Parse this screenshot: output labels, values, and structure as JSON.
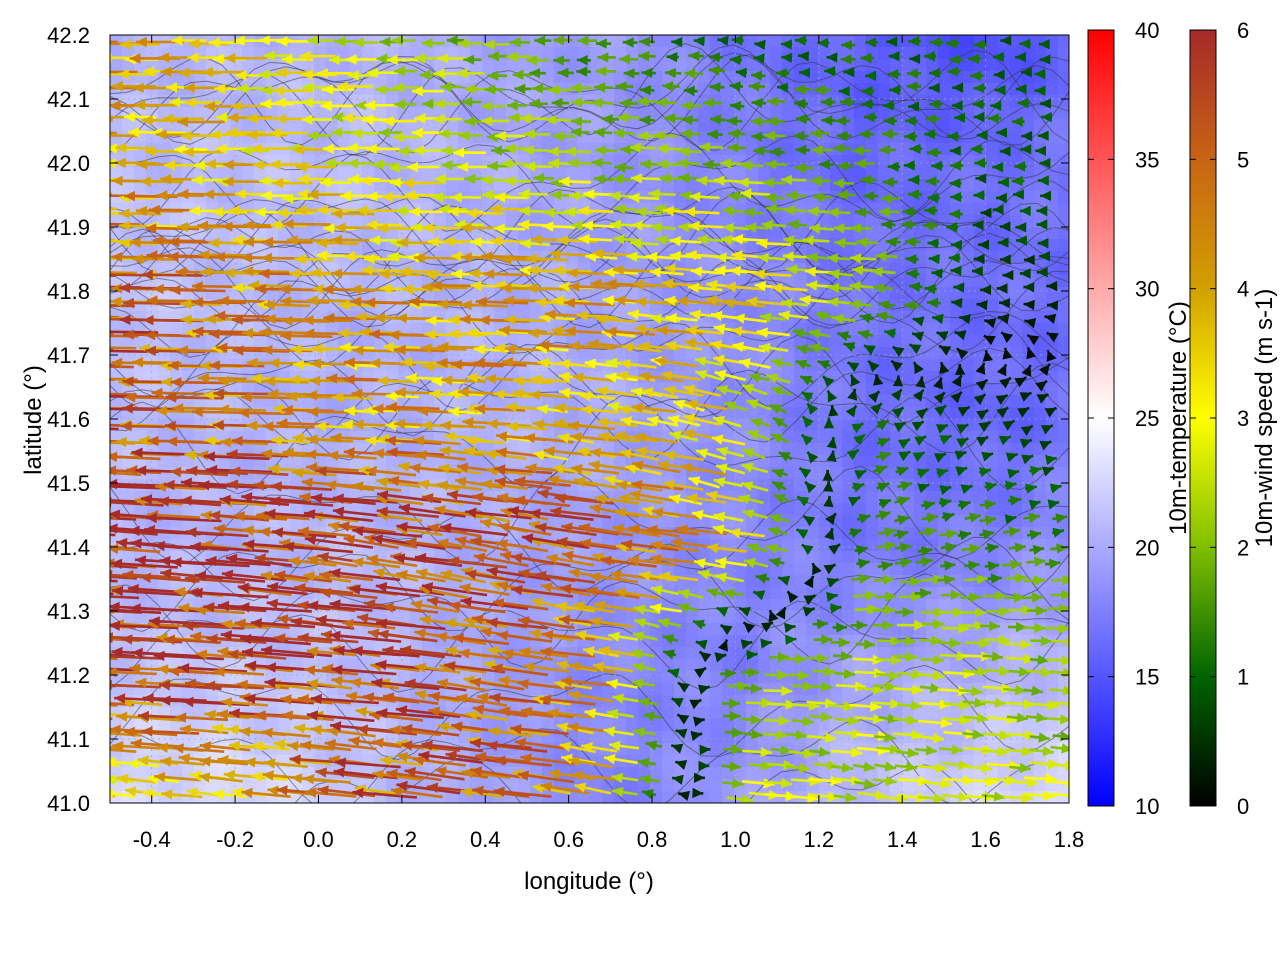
{
  "chart_data": {
    "type": "vector-field-map",
    "xlabel": "longitude (°)",
    "ylabel": "latitude (°)",
    "xlim": [
      -0.5,
      1.8
    ],
    "ylim": [
      41.0,
      42.2
    ],
    "xticks": [
      "-0.4",
      "-0.2",
      "0.0",
      "0.2",
      "0.4",
      "0.6",
      "0.8",
      "1.0",
      "1.2",
      "1.4",
      "1.6",
      "1.8"
    ],
    "yticks": [
      "41.0",
      "41.1",
      "41.2",
      "41.3",
      "41.4",
      "41.5",
      "41.6",
      "41.7",
      "41.8",
      "41.9",
      "42.0",
      "42.1",
      "42.2"
    ],
    "grid": true,
    "background_field": {
      "name": "10m-temperature",
      "colorbar_label": "10m-temperature (°C)",
      "range": [
        10,
        40
      ],
      "ticks": [
        "10",
        "15",
        "20",
        "25",
        "30",
        "35",
        "40"
      ],
      "colors": [
        "#0000ff",
        "#ffffff",
        "#ff0000"
      ],
      "approx_values": {
        "lon": [
          -0.5,
          -0.2,
          0.1,
          0.4,
          0.7,
          1.0,
          1.3,
          1.6,
          1.8
        ],
        "lat": [
          41.0,
          41.2,
          41.4,
          41.6,
          41.8,
          42.0,
          42.2
        ],
        "temp": [
          [
            22.5,
            23.0,
            21.5,
            19.5,
            17.5,
            19.0,
            21.5,
            22.5,
            23.0
          ],
          [
            21.5,
            21.5,
            21.0,
            19.5,
            18.0,
            17.5,
            19.5,
            20.5,
            21.0
          ],
          [
            20.5,
            20.5,
            21.0,
            20.0,
            19.0,
            18.0,
            17.0,
            17.5,
            18.5
          ],
          [
            21.0,
            20.5,
            20.0,
            20.5,
            20.0,
            18.5,
            16.5,
            16.0,
            16.5
          ],
          [
            21.5,
            21.0,
            20.5,
            20.5,
            19.5,
            18.5,
            17.0,
            16.5,
            16.5
          ],
          [
            21.0,
            21.0,
            21.0,
            20.0,
            19.0,
            17.5,
            16.0,
            16.5,
            17.0
          ],
          [
            20.5,
            20.5,
            20.5,
            19.5,
            19.0,
            17.0,
            15.5,
            14.5,
            15.5
          ]
        ]
      }
    },
    "vector_field": {
      "name": "10m-wind speed",
      "colorbar_label": "10m-wind speed (m s-1)",
      "range": [
        0,
        6
      ],
      "ticks": [
        "0",
        "1",
        "2",
        "3",
        "4",
        "5",
        "6"
      ],
      "colors": [
        "#000000",
        "#006400",
        "#7fbf00",
        "#ffff00",
        "#d2a000",
        "#c86414",
        "#a52a2a"
      ],
      "approx_field": {
        "lon": [
          -0.5,
          -0.2,
          0.1,
          0.4,
          0.7,
          1.0,
          1.3,
          1.6,
          1.8
        ],
        "lat": [
          41.0,
          41.2,
          41.4,
          41.6,
          41.8,
          42.0,
          42.2
        ],
        "u": [
          [
            -3.0,
            -3.0,
            -4.5,
            -5.0,
            -4.0,
            2.5,
            2.5,
            2.5,
            2.5
          ],
          [
            -5.5,
            -5.5,
            -5.5,
            -5.0,
            -4.0,
            2.0,
            2.5,
            2.5,
            2.0
          ],
          [
            -6.0,
            -6.0,
            -5.5,
            -5.5,
            -5.0,
            -4.0,
            1.5,
            1.5,
            1.5
          ],
          [
            -5.5,
            -4.5,
            -4.0,
            -4.0,
            -3.5,
            -3.0,
            1.0,
            0.5,
            0.5
          ],
          [
            -5.0,
            -4.5,
            -4.0,
            -4.0,
            -4.0,
            -3.5,
            -2.5,
            -0.5,
            -0.5
          ],
          [
            -4.0,
            -3.5,
            -3.0,
            -2.5,
            -2.0,
            -2.0,
            -1.5,
            -1.0,
            -1.0
          ],
          [
            -4.0,
            -3.5,
            -2.5,
            -2.0,
            -1.5,
            -1.0,
            -1.0,
            -1.0,
            -1.0
          ]
        ],
        "v": [
          [
            0.4,
            0.4,
            0.5,
            0.7,
            0.6,
            -0.3,
            -0.3,
            -0.2,
            -0.2
          ],
          [
            0.2,
            0.3,
            0.5,
            0.7,
            0.6,
            0.0,
            -0.2,
            -0.2,
            -0.2
          ],
          [
            0.4,
            0.5,
            0.7,
            0.9,
            0.8,
            0.6,
            0.3,
            0.2,
            0.2
          ],
          [
            0.1,
            0.1,
            0.1,
            0.2,
            0.4,
            0.8,
            0.6,
            0.3,
            0.2
          ],
          [
            0.1,
            0.1,
            0.1,
            0.1,
            0.2,
            0.3,
            0.2,
            0.0,
            0.0
          ],
          [
            0.1,
            0.0,
            0.0,
            0.0,
            0.1,
            0.1,
            0.0,
            0.0,
            0.0
          ],
          [
            0.0,
            0.0,
            0.0,
            0.0,
            0.0,
            0.1,
            0.0,
            0.0,
            0.0
          ]
        ]
      }
    }
  }
}
